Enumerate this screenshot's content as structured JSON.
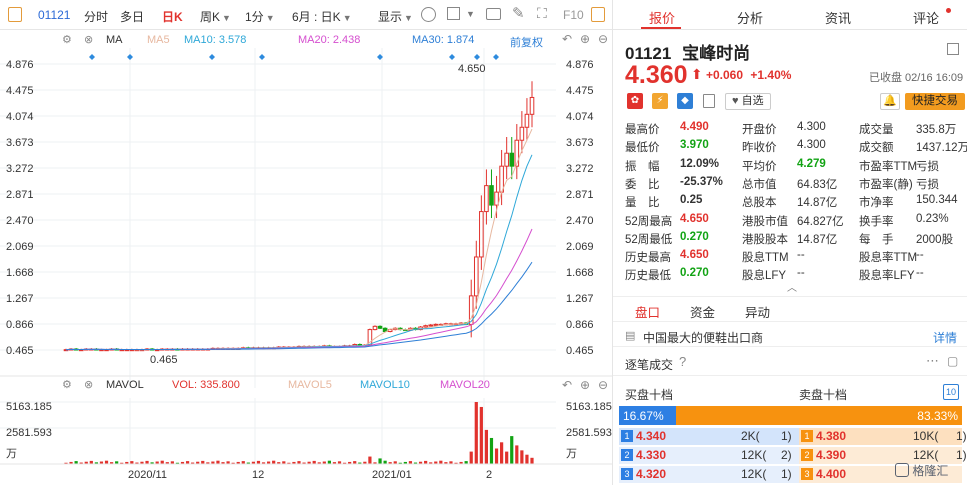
{
  "toolbar": {
    "code": "01121",
    "items": [
      "分时",
      "多日",
      "日K",
      "周K",
      "1分",
      "6月 : 日K",
      "显示"
    ],
    "f10": "F10"
  },
  "main_chart": {
    "ma_label": "MA",
    "ma5": "MA5",
    "ma10": "MA10: 3.578",
    "ma20": "MA20: 2.438",
    "ma30": "MA30: 1.874",
    "adjust": "前复权",
    "y_ticks": [
      "4.876",
      "4.475",
      "4.074",
      "3.673",
      "3.272",
      "2.871",
      "2.470",
      "2.069",
      "1.668",
      "1.267",
      "0.866",
      "0.465"
    ],
    "high_label": "4.650",
    "low_label": "0.465",
    "x_ticks": [
      "2020/11",
      "12",
      "2021/01",
      "2"
    ]
  },
  "vol_chart": {
    "label": "MAVOL",
    "vol": "VOL: 335.800",
    "mavol5": "MAVOL5",
    "mavol10": "MAVOL10",
    "mavol20": "MAVOL20",
    "y_ticks": [
      "5163.185",
      "2581.593",
      "万"
    ]
  },
  "chart_data": {
    "type": "candlestick",
    "closes": [
      0.47,
      0.48,
      0.47,
      0.47,
      0.48,
      0.48,
      0.47,
      0.47,
      0.47,
      0.48,
      0.47,
      0.47,
      0.47,
      0.47,
      0.47,
      0.47,
      0.48,
      0.47,
      0.47,
      0.48,
      0.48,
      0.48,
      0.47,
      0.48,
      0.48,
      0.48,
      0.48,
      0.48,
      0.48,
      0.49,
      0.49,
      0.49,
      0.49,
      0.49,
      0.49,
      0.5,
      0.49,
      0.5,
      0.5,
      0.5,
      0.5,
      0.5,
      0.51,
      0.51,
      0.51,
      0.51,
      0.52,
      0.52,
      0.52,
      0.52,
      0.52,
      0.53,
      0.52,
      0.52,
      0.52,
      0.53,
      0.53,
      0.55,
      0.53,
      0.54,
      0.78,
      0.83,
      0.8,
      0.75,
      0.78,
      0.8,
      0.78,
      0.77,
      0.8,
      0.78,
      0.82,
      0.84,
      0.85,
      0.86,
      0.86,
      0.87,
      0.87,
      0.87,
      0.88,
      0.86,
      1.3,
      1.9,
      2.6,
      3.0,
      2.7,
      2.9,
      3.3,
      3.5,
      3.3,
      3.7,
      3.9,
      4.1,
      4.36
    ]
  },
  "right": {
    "tabs": [
      "报价",
      "分析",
      "资讯",
      "评论"
    ],
    "code": "01121",
    "name": "宝峰时尚",
    "price": "4.360",
    "change": "+0.060",
    "pct": "+1.40%",
    "status": "已收盘 02/16 16:09",
    "watch": "自选",
    "quick_trade": "快捷交易",
    "rows": [
      [
        "最高价",
        "4.490",
        "开盘价",
        "4.300",
        "成交量",
        "335.8万"
      ],
      [
        "最低价",
        "3.970",
        "昨收价",
        "4.300",
        "成交额",
        "1437.12万"
      ],
      [
        "振　幅",
        "12.09%",
        "平均价",
        "4.279",
        "市盈率TTM",
        "亏损"
      ],
      [
        "委　比",
        "-25.37%",
        "总市值",
        "64.83亿",
        "市盈率(静)",
        "亏损"
      ],
      [
        "量　比",
        "0.25",
        "总股本",
        "14.87亿",
        "市净率",
        "150.344"
      ],
      [
        "52周最高",
        "4.650",
        "港股市值",
        "64.827亿",
        "换手率",
        "0.23%"
      ],
      [
        "52周最低",
        "0.270",
        "港股股本",
        "14.87亿",
        "每　手",
        "2000股"
      ],
      [
        "历史最高",
        "4.650",
        "股息TTM",
        "--",
        "股息率TTM",
        "--"
      ],
      [
        "历史最低",
        "0.270",
        "股息LFY",
        "--",
        "股息率LFY",
        "--"
      ]
    ],
    "sub_tabs": [
      "盘口",
      "资金",
      "异动"
    ],
    "profile": "中国最大的便鞋出口商",
    "profile_detail": "详情",
    "ticks_label": "逐笔成交",
    "bid_label": "买盘十档",
    "ask_label": "卖盘十档",
    "depth_btn": "10",
    "bid_pct": "16.67%",
    "ask_pct": "83.33%",
    "bid_ratio": 0.1667,
    "orders": [
      {
        "bn": "1",
        "bp": "4.340",
        "bq": "2K(",
        "bc": "1)",
        "an": "1",
        "ap": "4.380",
        "aq": "10K(",
        "ac": "1)"
      },
      {
        "bn": "2",
        "bp": "4.330",
        "bq": "12K(",
        "bc": "2)",
        "an": "2",
        "ap": "4.390",
        "aq": "12K(",
        "ac": "1)"
      },
      {
        "bn": "3",
        "bp": "4.320",
        "bq": "12K(",
        "bc": "1)",
        "an": "3",
        "ap": "4.400",
        "aq": "",
        "ac": ""
      }
    ],
    "watermark": "格隆汇"
  }
}
